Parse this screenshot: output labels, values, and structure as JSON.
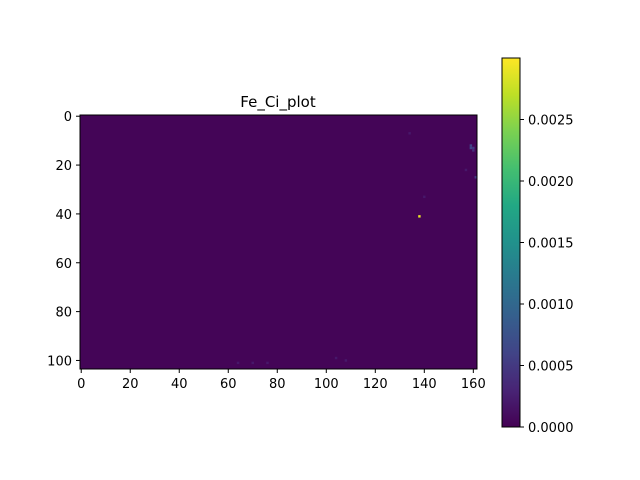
{
  "chart_data": [
    {
      "type": "heatmap",
      "title": "Fe_Ci_plot",
      "xlabel": "",
      "ylabel": "",
      "xlim": [
        -0.5,
        161.5
      ],
      "ylim": [
        103.5,
        -0.5
      ],
      "x_ticks": [
        0,
        20,
        40,
        60,
        80,
        100,
        120,
        140,
        160
      ],
      "y_ticks": [
        0,
        20,
        40,
        60,
        80,
        100
      ],
      "grid_shape": [
        104,
        162
      ],
      "background_value": 3e-05,
      "hotspots": [
        {
          "x": 138,
          "y": 41,
          "value": 0.0029
        },
        {
          "x": 159,
          "y": 12,
          "value": 0.0006
        },
        {
          "x": 159,
          "y": 13,
          "value": 0.0006
        },
        {
          "x": 160,
          "y": 13,
          "value": 0.0005
        },
        {
          "x": 160,
          "y": 14,
          "value": 0.0004
        },
        {
          "x": 161,
          "y": 25,
          "value": 0.0005
        },
        {
          "x": 64,
          "y": 101,
          "value": 0.0002
        },
        {
          "x": 70,
          "y": 101,
          "value": 0.0002
        },
        {
          "x": 76,
          "y": 101,
          "value": 0.0002
        },
        {
          "x": 104,
          "y": 99,
          "value": 0.0002
        },
        {
          "x": 108,
          "y": 100,
          "value": 0.0002
        },
        {
          "x": 134,
          "y": 7,
          "value": 0.0002
        },
        {
          "x": 157,
          "y": 22,
          "value": 0.0002
        },
        {
          "x": 140,
          "y": 33,
          "value": 0.0002
        }
      ],
      "colormap": "viridis",
      "colorbar": {
        "min": 0.0,
        "max": 0.003,
        "ticks": [
          0.0,
          0.0005,
          0.001,
          0.0015,
          0.002,
          0.0025
        ],
        "tick_labels": [
          "0.0000",
          "0.0005",
          "0.0010",
          "0.0015",
          "0.0020",
          "0.0025"
        ]
      },
      "grid": false
    }
  ]
}
